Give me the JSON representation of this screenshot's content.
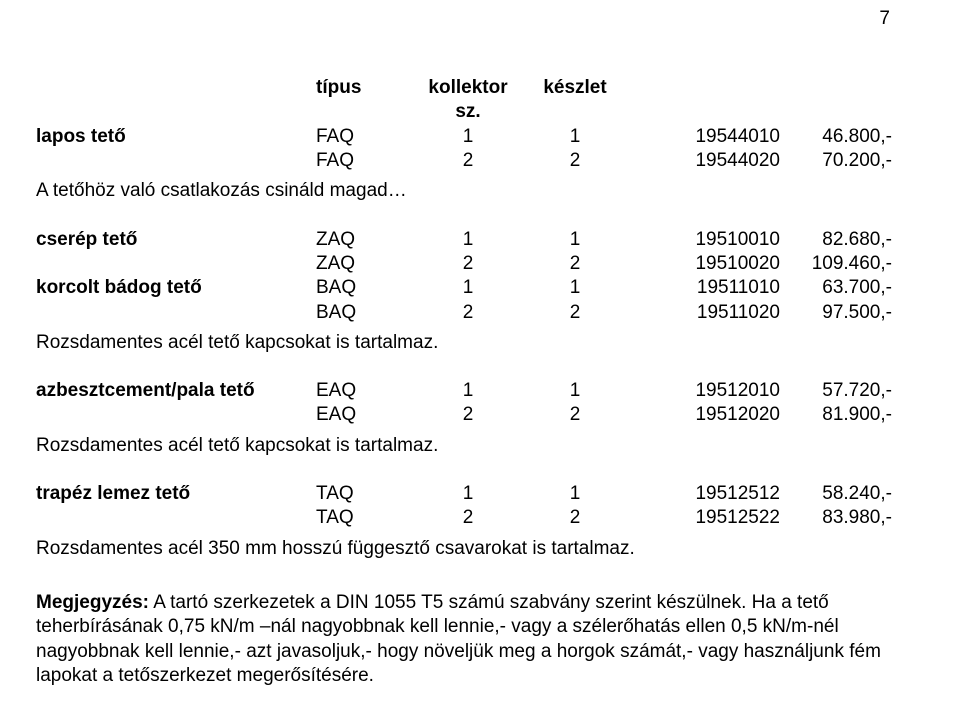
{
  "page_number": "7",
  "header": {
    "type": "típus",
    "col1": "kollektor sz.",
    "col2": "készlet"
  },
  "sections": [
    {
      "label": "lapos tető",
      "rows": [
        {
          "type": "FAQ",
          "n1": "1",
          "n2": "1",
          "code": "19544010",
          "price": "46.800,-"
        },
        {
          "type": "FAQ",
          "n1": "2",
          "n2": "2",
          "code": "19544020",
          "price": "70.200,-"
        }
      ],
      "note": "A tetőhöz való csatlakozás csináld magad…"
    },
    {
      "label": "cserép tető",
      "rows": [
        {
          "type": "ZAQ",
          "n1": "1",
          "n2": "1",
          "code": "19510010",
          "price": "82.680,-"
        },
        {
          "type": "ZAQ",
          "n1": "2",
          "n2": "2",
          "code": "19510020",
          "price": "109.460,-"
        }
      ]
    },
    {
      "label": "korcolt bádog tető",
      "rows": [
        {
          "type": "BAQ",
          "n1": "1",
          "n2": "1",
          "code": "19511010",
          "price": "63.700,-"
        },
        {
          "type": "BAQ",
          "n1": "2",
          "n2": "2",
          "code": "19511020",
          "price": "97.500,-"
        }
      ],
      "note": "Rozsdamentes acél tető kapcsokat is tartalmaz."
    },
    {
      "label": "azbesztcement/pala tető",
      "rows": [
        {
          "type": "EAQ",
          "n1": "1",
          "n2": "1",
          "code": "19512010",
          "price": "57.720,-"
        },
        {
          "type": "EAQ",
          "n1": "2",
          "n2": "2",
          "code": "19512020",
          "price": "81.900,-"
        }
      ],
      "note": "Rozsdamentes acél tető kapcsokat is tartalmaz."
    },
    {
      "label": "trapéz lemez tető",
      "rows": [
        {
          "type": "TAQ",
          "n1": "1",
          "n2": "1",
          "code": "19512512",
          "price": "58.240,-"
        },
        {
          "type": "TAQ",
          "n1": "2",
          "n2": "2",
          "code": "19512522",
          "price": "83.980,-"
        }
      ],
      "note": "Rozsdamentes acél 350 mm hosszú függesztő csavarokat is tartalmaz."
    }
  ],
  "final_note_label": "Megjegyzés:",
  "final_note_text": " A tartó szerkezetek a DIN 1055 T5 számú szabvány szerint készülnek. Ha a tető teherbírásának 0,75 kN/m –nál nagyobbnak kell lennie,- vagy a szélerőhatás ellen  0,5 kN/m-nél nagyobbnak kell lennie,- azt javasoljuk,- hogy növeljük meg a horgok számát,- vagy használjunk fém lapokat a tetőszerkezet megerősítésére."
}
